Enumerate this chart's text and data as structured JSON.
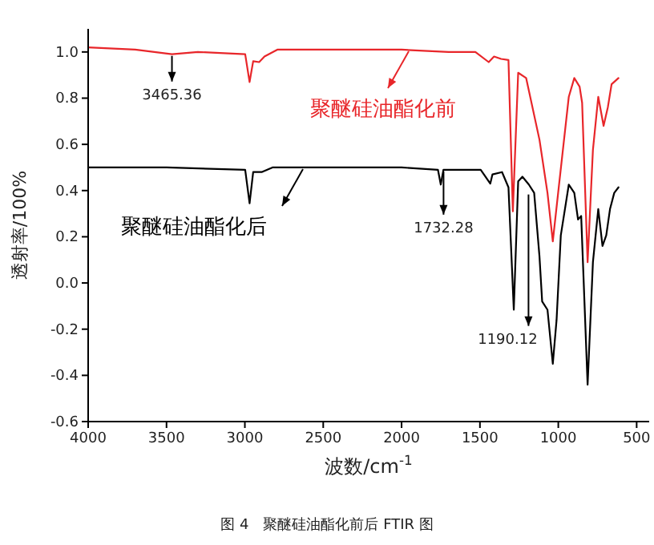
{
  "chart_data": {
    "type": "line",
    "xlabel": "波数/cm$^{-1}$",
    "ylabel": "透射率/100%",
    "xlim": [
      4000,
      420
    ],
    "ylim": [
      -0.6,
      1.1
    ],
    "xticks": [
      4000,
      3500,
      3000,
      2500,
      2000,
      1500,
      1000,
      500
    ],
    "yticks": [
      {
        "value": -0.6,
        "label": "-0.6"
      },
      {
        "value": -0.4,
        "label": "-0.4"
      },
      {
        "value": -0.2,
        "label": "-0.2"
      },
      {
        "value": 0,
        "label": "0.0"
      },
      {
        "value": 0.2,
        "label": "0.2"
      },
      {
        "value": 0.4,
        "label": "0.4"
      },
      {
        "value": 0.6,
        "label": "0.6"
      },
      {
        "value": 0.8,
        "label": "0.8"
      },
      {
        "value": 1,
        "label": "1.0"
      }
    ],
    "grid": false,
    "legend": "top",
    "marker": "none",
    "line_style": "solid",
    "series": [
      {
        "name": "聚醚硅油酯化前",
        "color": "#e8262a",
        "x": [
          4000,
          3700,
          3465,
          3300,
          2998,
          2970,
          2947,
          2909,
          2875,
          2793,
          2400,
          2000,
          1700,
          1529,
          1444,
          1410,
          1365,
          1318,
          1290,
          1256,
          1205,
          1120,
          1069,
          1035,
          1001,
          933,
          898,
          864,
          848,
          813,
          779,
          745,
          711,
          684,
          660,
          616
        ],
        "values": [
          1.02,
          1.01,
          0.99,
          1.0,
          0.99,
          0.87,
          0.96,
          0.956,
          0.98,
          1.01,
          1.01,
          1.01,
          1.0,
          1.0,
          0.956,
          0.98,
          0.97,
          0.965,
          0.31,
          0.91,
          0.887,
          0.62,
          0.39,
          0.18,
          0.39,
          0.806,
          0.887,
          0.85,
          0.78,
          0.09,
          0.576,
          0.806,
          0.68,
          0.76,
          0.86,
          0.887
        ]
      },
      {
        "name": "聚醚硅油酯化后",
        "color": "#000000",
        "x": [
          4000,
          3500,
          2998,
          2970,
          2947,
          2893,
          2824,
          2400,
          2000,
          1768,
          1750,
          1733,
          1495,
          1434,
          1420,
          1359,
          1318,
          1284,
          1256,
          1229,
          1188,
          1154,
          1120,
          1103,
          1069,
          1035,
          1011,
          984,
          933,
          898,
          874,
          854,
          813,
          779,
          745,
          718,
          694,
          670,
          643,
          616
        ],
        "values": [
          0.5,
          0.5,
          0.49,
          0.345,
          0.48,
          0.48,
          0.5,
          0.5,
          0.5,
          0.49,
          0.426,
          0.49,
          0.49,
          0.43,
          0.47,
          0.48,
          0.414,
          -0.116,
          0.44,
          0.46,
          0.426,
          0.39,
          0.114,
          -0.08,
          -0.116,
          -0.35,
          -0.16,
          0.206,
          0.426,
          0.39,
          0.275,
          0.29,
          -0.44,
          0.09,
          0.32,
          0.16,
          0.206,
          0.32,
          0.39,
          0.414
        ]
      }
    ],
    "annotations": [
      {
        "text": "3465.36",
        "x": 3465.36,
        "y": 0.99
      },
      {
        "text": "1732.28",
        "x": 1732.28,
        "y": 0.49
      },
      {
        "text": "1190.12",
        "x": 1190.12,
        "y": 0.39
      },
      "图 4　聚醚硅油酯化前后 FTIR 图"
    ]
  }
}
